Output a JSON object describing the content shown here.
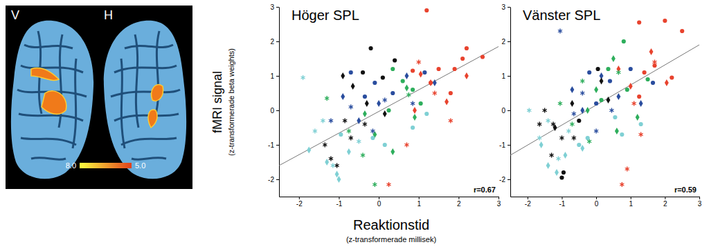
{
  "brain_map": {
    "hemisphere_labels": [
      "V",
      "H"
    ],
    "colorbar": {
      "range": [
        8.0,
        5.0
      ],
      "ticks": [
        {
          "value": 8,
          "label": "8.0"
        },
        {
          "value": 5,
          "label": "5.0"
        }
      ]
    }
  },
  "shared_axis_titles": {
    "x": "Reaktionstid",
    "x_unit": "(z-transformerade millisek)",
    "y": "fMRI signal",
    "y_unit": "(z-transformerade beta weights)"
  },
  "chart_data": [
    {
      "type": "scatter",
      "title": "Höger SPL",
      "annotation": "r=0.67",
      "xlim": [
        -2.5,
        3
      ],
      "ylim": [
        -2.5,
        3
      ],
      "xticks": [
        -2,
        -1,
        0,
        1,
        2,
        3
      ],
      "yticks": [
        -2,
        -1,
        0,
        1,
        2,
        3
      ],
      "fit_line": {
        "x": [
          -2.5,
          3
        ],
        "values": [
          -1.6,
          1.85
        ]
      },
      "series": [
        {
          "color": "#e8432e",
          "marker": "circle",
          "x": [
            1.2,
            2.2,
            2.1,
            1.5,
            1.9,
            2.6,
            1.3,
            1.8,
            0.85
          ],
          "values": [
            2.9,
            1.8,
            1.5,
            1.2,
            1.2,
            1.55,
            0.8,
            0.5,
            1.15
          ]
        },
        {
          "color": "#e8432e",
          "marker": "diamond",
          "x": [
            1.05,
            1.3,
            1.7,
            2.2,
            0.9
          ],
          "values": [
            1.05,
            0.8,
            0.25,
            1.0,
            0.0
          ]
        },
        {
          "color": "#e8432e",
          "marker": "star",
          "x": [
            0.25,
            0.7,
            1.8,
            1.4,
            1.0
          ],
          "values": [
            -2.15,
            -1.0,
            -0.3,
            0.5,
            1.4
          ]
        },
        {
          "color": "#2eae5c",
          "marker": "circle",
          "x": [
            0.35,
            0.6,
            1.05,
            0.25,
            0.85
          ],
          "values": [
            1.2,
            0.85,
            0.2,
            0.0,
            0.6
          ]
        },
        {
          "color": "#2eae5c",
          "marker": "diamond",
          "x": [
            -0.1,
            0.35,
            0.7,
            -0.35,
            0.9
          ],
          "values": [
            -0.7,
            -1.2,
            0.65,
            -0.1,
            -0.2
          ]
        },
        {
          "color": "#2eae5c",
          "marker": "star",
          "x": [
            -1.3,
            -0.4,
            -0.1,
            0.75,
            -0.75
          ],
          "values": [
            0.35,
            -1.3,
            -2.15,
            0.45,
            -0.6
          ]
        },
        {
          "color": "#2a4d9e",
          "marker": "circle",
          "x": [
            -0.7,
            -0.1,
            0.35,
            -0.35,
            1.15
          ],
          "values": [
            1.1,
            0.8,
            0.5,
            0.4,
            1.1
          ]
        },
        {
          "color": "#2a4d9e",
          "marker": "diamond",
          "x": [
            -0.9,
            0,
            -0.5,
            0.7,
            1.4
          ],
          "values": [
            0.4,
            0.2,
            -0.3,
            1.0,
            0.8
          ]
        },
        {
          "color": "#2a4d9e",
          "marker": "star",
          "x": [
            -1.2,
            -0.7,
            0.15,
            0.85,
            -0.15
          ],
          "values": [
            -0.3,
            0.1,
            0.3,
            0.2,
            -0.6
          ]
        },
        {
          "color": "#111111",
          "marker": "circle",
          "x": [
            -0.2,
            -0.4,
            0.1,
            0.4
          ],
          "values": [
            1.8,
            1.1,
            0.95,
            1.45
          ]
        },
        {
          "color": "#111111",
          "marker": "diamond",
          "x": [
            -0.65,
            -0.3,
            -0.9,
            0.15
          ],
          "values": [
            0.7,
            0.2,
            1.0,
            -0.1
          ]
        },
        {
          "color": "#111111",
          "marker": "star",
          "x": [
            -1.35,
            -1.05,
            -1.2,
            -0.7,
            -0.85,
            -0.35
          ],
          "values": [
            -1.0,
            -1.6,
            -1.4,
            -0.8,
            -0.3,
            -0.4
          ]
        },
        {
          "color": "#7fd0d4",
          "marker": "circle",
          "x": [
            -0.95,
            -0.15,
            1.2,
            0.85,
            0.15
          ],
          "values": [
            -0.7,
            -0.8,
            -0.1,
            -0.5,
            -1.0
          ]
        },
        {
          "color": "#7fd0d4",
          "marker": "diamond",
          "x": [
            -1.05,
            -1.0,
            -1.75,
            -1.3,
            -0.75
          ],
          "values": [
            -1.85,
            -2.0,
            -1.15,
            -1.5,
            -1.2
          ]
        },
        {
          "color": "#7fd0d4",
          "marker": "star",
          "x": [
            -1.9,
            -1.4,
            -1.15,
            -0.5,
            -1.6
          ],
          "values": [
            0.95,
            -0.3,
            -1.6,
            -0.9,
            -0.6
          ]
        }
      ]
    },
    {
      "type": "scatter",
      "title": "Vänster SPL",
      "annotation": "r=0.59",
      "xlim": [
        -2.5,
        3
      ],
      "ylim": [
        -2.5,
        3
      ],
      "xticks": [
        -2,
        -1,
        0,
        1,
        2,
        3
      ],
      "yticks": [
        -2,
        -1,
        0,
        1,
        2,
        3
      ],
      "fit_line": {
        "x": [
          -2.5,
          3
        ],
        "values": [
          -1.3,
          1.9
        ]
      },
      "series": [
        {
          "color": "#e8432e",
          "marker": "circle",
          "x": [
            2.5,
            2.0,
            1.25,
            1.7,
            2.2,
            1.25,
            1.4
          ],
          "values": [
            2.3,
            2.6,
            2.55,
            1.3,
            0.95,
            0.4,
            1.1
          ]
        },
        {
          "color": "#e8432e",
          "marker": "diamond",
          "x": [
            1.6,
            2.05,
            1.0,
            0.65
          ],
          "values": [
            1.7,
            0.8,
            0.7,
            1.2
          ]
        },
        {
          "color": "#e8432e",
          "marker": "star",
          "x": [
            0.75,
            0.9,
            1.7,
            1.1,
            1.3
          ],
          "values": [
            -2.15,
            -1.7,
            1.4,
            0.2,
            -0.7
          ]
        },
        {
          "color": "#2eae5c",
          "marker": "circle",
          "x": [
            0.8,
            0.35,
            0.9,
            0.15,
            1.5
          ],
          "values": [
            2.0,
            1.2,
            0.6,
            0.3,
            0.9
          ]
        },
        {
          "color": "#2eae5c",
          "marker": "diamond",
          "x": [
            0.5,
            0.6,
            -0.25,
            0,
            1.2
          ],
          "values": [
            1.5,
            -0.6,
            0,
            0.6,
            -0.2
          ]
        },
        {
          "color": "#2eae5c",
          "marker": "star",
          "x": [
            -0.7,
            -0.2,
            -1.05,
            0.65,
            -0.4
          ],
          "values": [
            -0.4,
            -0.9,
            0.2,
            1.1,
            0.85
          ]
        },
        {
          "color": "#2a4d9e",
          "marker": "circle",
          "x": [
            0.4,
            -0.2,
            1.0,
            0,
            1.65
          ],
          "values": [
            0.85,
            1.1,
            1.2,
            0.2,
            0.8
          ]
        },
        {
          "color": "#2a4d9e",
          "marker": "diamond",
          "x": [
            -0.7,
            0.15,
            -0.4,
            0.65,
            1.3
          ],
          "values": [
            0.6,
            1.0,
            0,
            0.4,
            0.2
          ]
        },
        {
          "color": "#2a4d9e",
          "marker": "star",
          "x": [
            -1.05,
            -0.4,
            0.45,
            0,
            -0.65
          ],
          "values": [
            2.3,
            0.5,
            0,
            -0.6,
            -0.1
          ]
        },
        {
          "color": "#111111",
          "marker": "circle",
          "x": [
            0.05,
            -1.0,
            -0.95,
            -0.5
          ],
          "values": [
            1.2,
            -1.95,
            -1.8,
            -0.3
          ]
        },
        {
          "color": "#111111",
          "marker": "diamond",
          "x": [
            -0.7,
            0.15,
            0.35,
            -1.2
          ],
          "values": [
            0.2,
            0.85,
            0.3,
            -0.5
          ]
        },
        {
          "color": "#111111",
          "marker": "star",
          "x": [
            -1.5,
            -1.0,
            -1.25,
            -0.65,
            -1.3,
            -1.65
          ],
          "values": [
            0,
            -0.8,
            -0.4,
            -0.8,
            -1.3,
            -0.4
          ]
        },
        {
          "color": "#7fd0d4",
          "marker": "circle",
          "x": [
            -0.25,
            1.3,
            0.55,
            -0.5,
            0.75
          ],
          "values": [
            -0.8,
            -0.4,
            -0.2,
            -1.0,
            -0.7
          ]
        },
        {
          "color": "#7fd0d4",
          "marker": "diamond",
          "x": [
            -1.4,
            -1.15,
            -1.6,
            -0.9,
            -0.4
          ],
          "values": [
            -1.6,
            -1.8,
            -1.0,
            -1.3,
            -1.1
          ]
        },
        {
          "color": "#7fd0d4",
          "marker": "star",
          "x": [
            -1.95,
            -1.65,
            -1.1,
            -1.4,
            -0.8
          ],
          "values": [
            0,
            -0.8,
            -1.4,
            -0.3,
            -0.6
          ]
        }
      ]
    }
  ]
}
